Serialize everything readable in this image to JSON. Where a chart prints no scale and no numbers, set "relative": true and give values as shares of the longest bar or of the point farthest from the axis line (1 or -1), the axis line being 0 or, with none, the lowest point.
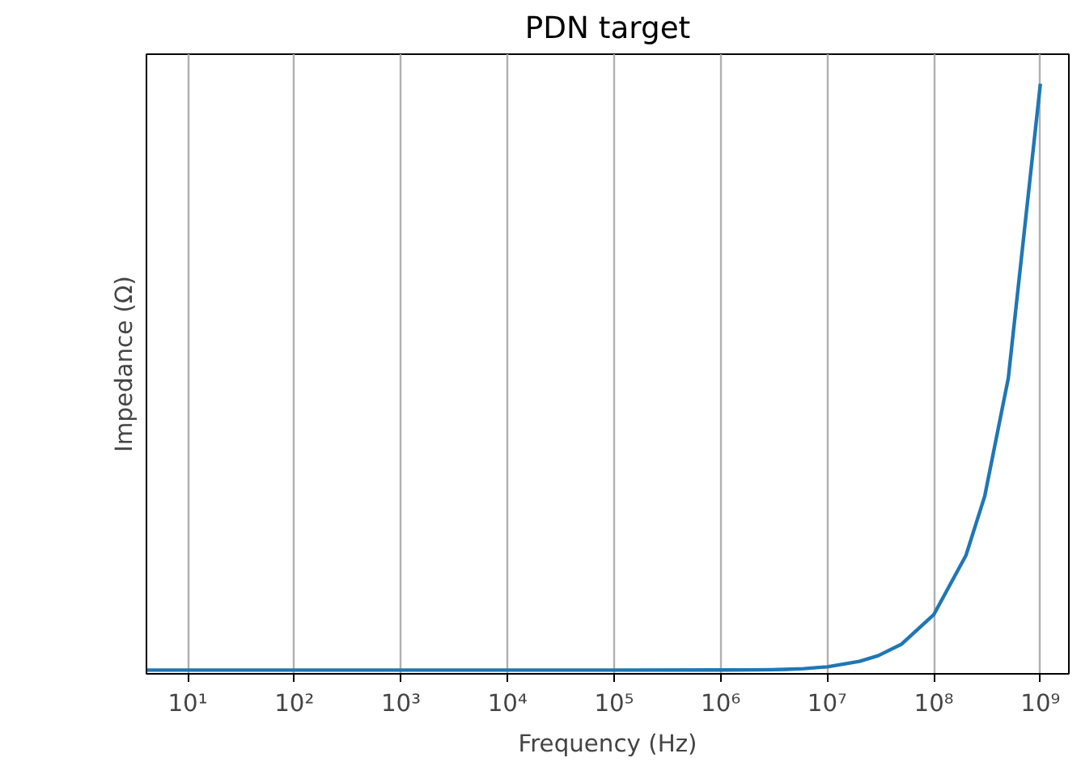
{
  "chart_data": {
    "type": "line",
    "title": "PDN target",
    "xlabel": "Frequency (Hz)",
    "ylabel": "Impedance (Ω)",
    "x": [
      4.1,
      10,
      100,
      1000,
      10000,
      100000,
      1000000,
      2000000,
      3000000,
      4000000,
      6000000,
      10000000,
      20000000,
      30000000,
      50000000,
      100000000,
      200000000,
      300000000,
      500000000,
      1000000000
    ],
    "series": [
      {
        "color": "#1f77b4",
        "values": [
          0.0064,
          0.0064,
          0.0064,
          0.0064,
          0.0064,
          0.0064,
          0.00649,
          0.00672,
          0.00708,
          0.00756,
          0.00879,
          0.0119,
          0.021,
          0.0307,
          0.0505,
          0.1004,
          0.2004,
          0.3006,
          0.501,
          1.0
        ]
      }
    ],
    "relative": true,
    "log": "x",
    "grid": "x",
    "marker": "none",
    "line_style": "solid",
    "xlim": [
      4.1,
      1850000000
    ],
    "xticks": [
      {
        "value": 10,
        "label": "10¹"
      },
      {
        "value": 100,
        "label": "10²"
      },
      {
        "value": 1000,
        "label": "10³"
      },
      {
        "value": 10000,
        "label": "10⁴"
      },
      {
        "value": 100000,
        "label": "10⁵"
      },
      {
        "value": 1000000,
        "label": "10⁶"
      },
      {
        "value": 10000000,
        "label": "10⁷"
      },
      {
        "value": 100000000,
        "label": "10⁸"
      },
      {
        "value": 1000000000,
        "label": "10⁹"
      }
    ]
  }
}
